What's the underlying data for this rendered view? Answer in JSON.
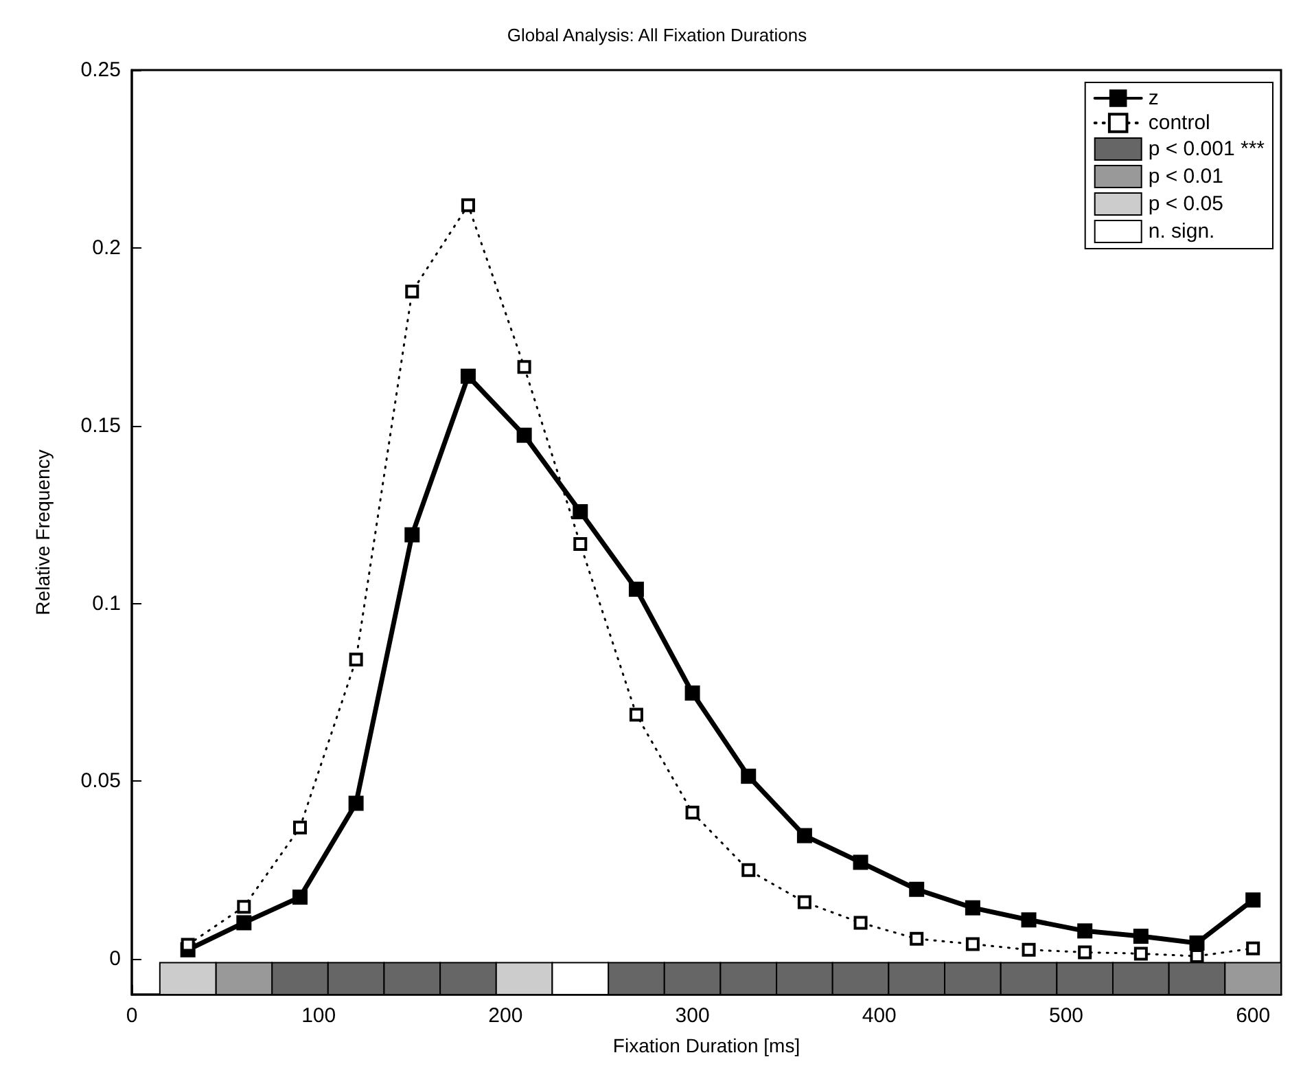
{
  "chart_data": {
    "type": "line",
    "title": "Global Analysis: All Fixation Durations",
    "xlabel": "Fixation Duration [ms]",
    "ylabel": "Relative Frequency",
    "xlim": [
      0,
      615
    ],
    "xticks": [
      0,
      100,
      200,
      300,
      400,
      500,
      600
    ],
    "ylim": [
      -0.01,
      0.25
    ],
    "yticks": [
      0,
      0.05,
      0.1,
      0.15,
      0.2,
      0.25
    ],
    "grid": false,
    "legend": "top right",
    "series": [
      {
        "name": "z",
        "color": "#000000",
        "marker": "square",
        "line_style": "solid",
        "x": [
          30,
          60,
          90,
          120,
          150,
          180,
          210,
          240,
          270,
          300,
          330,
          360,
          390,
          420,
          450,
          480,
          510,
          540,
          570,
          600
        ],
        "values": [
          0.0026,
          0.0102,
          0.0174,
          0.0438,
          0.1193,
          0.1639,
          0.1473,
          0.1258,
          0.104,
          0.0748,
          0.0514,
          0.0347,
          0.0272,
          0.0196,
          0.0144,
          0.011,
          0.0079,
          0.0064,
          0.0045,
          0.0166
        ]
      },
      {
        "name": "control",
        "color": "#000000",
        "marker": "square",
        "line_style": "dotted",
        "x": [
          30,
          60,
          90,
          120,
          150,
          180,
          210,
          240,
          270,
          300,
          330,
          360,
          390,
          420,
          450,
          480,
          510,
          540,
          570,
          600
        ],
        "values": [
          0.004,
          0.0147,
          0.037,
          0.0842,
          0.1877,
          0.212,
          0.1665,
          0.1167,
          0.0687,
          0.0412,
          0.025,
          0.016,
          0.0102,
          0.0057,
          0.0042,
          0.0026,
          0.0019,
          0.0015,
          0.0008,
          0.003
        ]
      },
      {
        "name": "p < 0.001 ***",
        "type": "bar",
        "color": "#666666",
        "x": [
          90,
          120,
          150,
          180,
          270,
          300,
          330,
          360,
          390,
          420,
          450,
          480,
          510,
          540,
          570
        ],
        "values": [
          0.009,
          0.009,
          0.009,
          0.009,
          0.009,
          0.009,
          0.009,
          0.009,
          0.009,
          0.009,
          0.009,
          0.009,
          0.009,
          0.009,
          0.009
        ],
        "base": [
          -0.01,
          -0.01,
          -0.01,
          -0.01,
          -0.01,
          -0.01,
          -0.01,
          -0.01,
          -0.01,
          -0.01,
          -0.01,
          -0.01,
          -0.01,
          -0.01,
          -0.01
        ]
      },
      {
        "name": "p < 0.01",
        "type": "bar",
        "color": "#999999",
        "x": [
          60,
          600
        ],
        "values": [
          0.009,
          0.009
        ],
        "base": [
          -0.01,
          -0.01
        ]
      },
      {
        "name": "p < 0.05",
        "type": "bar",
        "color": "#cccccc",
        "x": [
          30,
          210
        ],
        "values": [
          0.009,
          0.009
        ],
        "base": [
          -0.01,
          -0.01
        ]
      },
      {
        "name": "n. sign.",
        "type": "bar",
        "color": "#ffffff",
        "x": [
          240
        ],
        "values": [
          0.009
        ],
        "base": [
          -0.01
        ]
      }
    ]
  }
}
